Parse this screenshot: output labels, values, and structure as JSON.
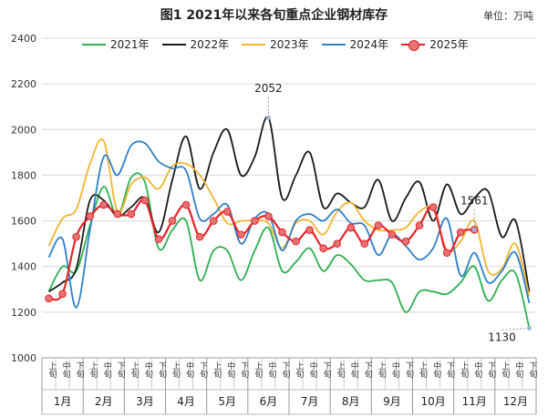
{
  "header": {
    "title": "图1  2021年以来各旬重点企业钢材库存",
    "unit": "单位：万吨"
  },
  "chart_data": {
    "type": "line",
    "title": "图1  2021年以来各旬重点企业钢材库存",
    "unit": "单位：万吨",
    "ylim": [
      1000,
      2400
    ],
    "yticks": [
      1000,
      1200,
      1400,
      1600,
      1800,
      2000,
      2200,
      2400
    ],
    "ten_day_labels": [
      "上旬",
      "中旬",
      "下旬"
    ],
    "months": [
      "1月",
      "2月",
      "3月",
      "4月",
      "5月",
      "6月",
      "7月",
      "8月",
      "9月",
      "10月",
      "11月",
      "12月"
    ],
    "legend_position": "top",
    "grid": true,
    "series": [
      {
        "name": "2021年",
        "color": "#2db04f",
        "values": [
          1290,
          1400,
          1380,
          1580,
          1750,
          1620,
          1790,
          1770,
          1480,
          1560,
          1600,
          1340,
          1470,
          1470,
          1340,
          1470,
          1570,
          1380,
          1420,
          1480,
          1380,
          1450,
          1410,
          1340,
          1340,
          1330,
          1200,
          1290,
          1290,
          1280,
          1330,
          1400,
          1250,
          1340,
          1370,
          1130
        ]
      },
      {
        "name": "2022年",
        "color": "#1a1a1a",
        "values": [
          1290,
          1330,
          1390,
          1690,
          1690,
          1620,
          1660,
          1700,
          1550,
          1780,
          1970,
          1740,
          1900,
          2000,
          1800,
          1880,
          2052,
          1700,
          1800,
          1900,
          1660,
          1720,
          1680,
          1660,
          1780,
          1600,
          1700,
          1770,
          1600,
          1760,
          1630,
          1700,
          1730,
          1530,
          1600,
          1290
        ]
      },
      {
        "name": "2023年",
        "color": "#f2b531",
        "values": [
          1490,
          1610,
          1650,
          1850,
          1950,
          1640,
          1760,
          1790,
          1740,
          1840,
          1850,
          1800,
          1700,
          1590,
          1600,
          1600,
          1590,
          1480,
          1590,
          1600,
          1540,
          1640,
          1680,
          1600,
          1560,
          1560,
          1570,
          1640,
          1650,
          1470,
          1510,
          1600,
          1380,
          1390,
          1500,
          1270
        ]
      },
      {
        "name": "2024年",
        "color": "#2f80c8",
        "values": [
          1440,
          1520,
          1220,
          1560,
          1880,
          1800,
          1930,
          1940,
          1860,
          1830,
          1820,
          1610,
          1630,
          1670,
          1500,
          1610,
          1630,
          1470,
          1600,
          1630,
          1600,
          1650,
          1590,
          1580,
          1450,
          1540,
          1490,
          1430,
          1480,
          1610,
          1360,
          1460,
          1330,
          1380,
          1460,
          1240
        ]
      },
      {
        "name": "2025年",
        "color": "#e8232a",
        "marker": true,
        "values": [
          1260,
          1280,
          1530,
          1620,
          1670,
          1630,
          1630,
          1690,
          1520,
          1600,
          1670,
          1530,
          1600,
          1640,
          1540,
          1600,
          1620,
          1550,
          1510,
          1560,
          1480,
          1500,
          1570,
          1500,
          1580,
          1540,
          1510,
          1580,
          1660,
          1460,
          1550,
          1561
        ]
      }
    ],
    "annotations": [
      {
        "text": "2052",
        "series": "2022年",
        "x_index": 16,
        "y": 2052
      },
      {
        "text": "1561",
        "series": "2025年",
        "x_index": 31,
        "y": 1561
      },
      {
        "text": "1130",
        "series": "2021年",
        "x_index": 35,
        "y": 1130
      }
    ]
  }
}
